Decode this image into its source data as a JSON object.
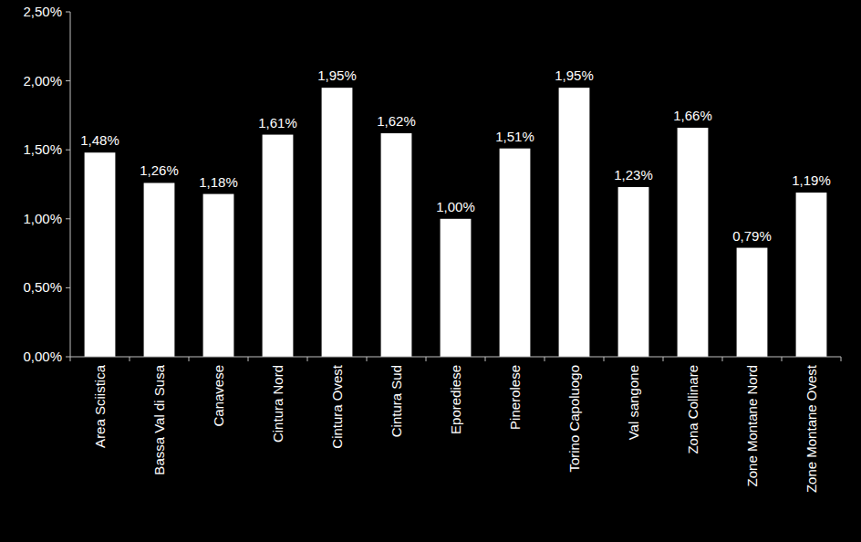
{
  "chart_data": {
    "type": "bar",
    "categories": [
      "Area Sciistica",
      "Bassa Val di Susa",
      "Canavese",
      "Cintura Nord",
      "Cintura Ovest",
      "Cintura Sud",
      "Eporediese",
      "Pinerolese",
      "Torino Capoluogo",
      "Val sangone",
      "Zona Collinare",
      "Zone Montane Nord",
      "Zone Montane Ovest"
    ],
    "values": [
      1.48,
      1.26,
      1.18,
      1.61,
      1.95,
      1.62,
      1.0,
      1.51,
      1.95,
      1.23,
      1.66,
      0.79,
      1.19
    ],
    "value_labels": [
      "1,48%",
      "1,26%",
      "1,18%",
      "1,61%",
      "1,95%",
      "1,62%",
      "1,00%",
      "1,51%",
      "1,95%",
      "1,23%",
      "1,66%",
      "0,79%",
      "1,19%"
    ],
    "color": "#ffffff",
    "ylim": [
      0,
      2.5
    ],
    "yticks": [
      {
        "value": 0,
        "label": "0,00%"
      },
      {
        "value": 0.5,
        "label": "0,50%"
      },
      {
        "value": 1,
        "label": "1,00%"
      },
      {
        "value": 1.5,
        "label": "1,50%"
      },
      {
        "value": 2,
        "label": "2,00%"
      },
      {
        "value": 2.5,
        "label": "2,50%"
      }
    ],
    "grid": false,
    "data_labels": true
  }
}
